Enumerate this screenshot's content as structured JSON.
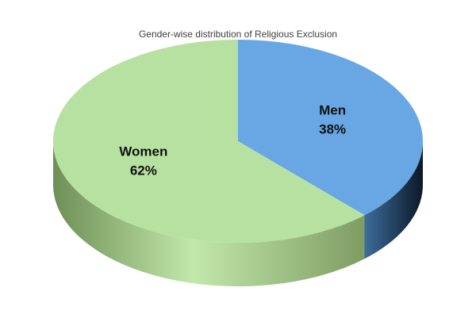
{
  "chart_data": {
    "type": "pie",
    "title": "Gender-wise distribution of Religious Exclusion",
    "categories": [
      "Men",
      "Women"
    ],
    "values": [
      38,
      62
    ],
    "value_labels": [
      "38%",
      "62%"
    ],
    "colors": [
      "#68a6e4",
      "#b7e1a1"
    ]
  }
}
